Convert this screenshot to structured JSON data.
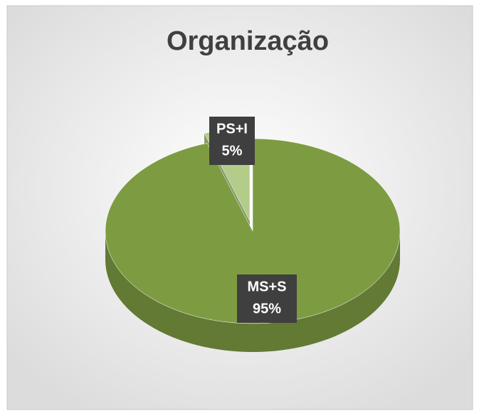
{
  "chart_data": {
    "type": "pie",
    "title": "Organização",
    "categories": [
      "PS+I",
      "MS+S"
    ],
    "values": [
      5,
      95
    ],
    "value_labels": [
      "5%",
      "95%"
    ],
    "colors": [
      "#b3cc8a",
      "#7d9c42"
    ],
    "three_d": true
  }
}
